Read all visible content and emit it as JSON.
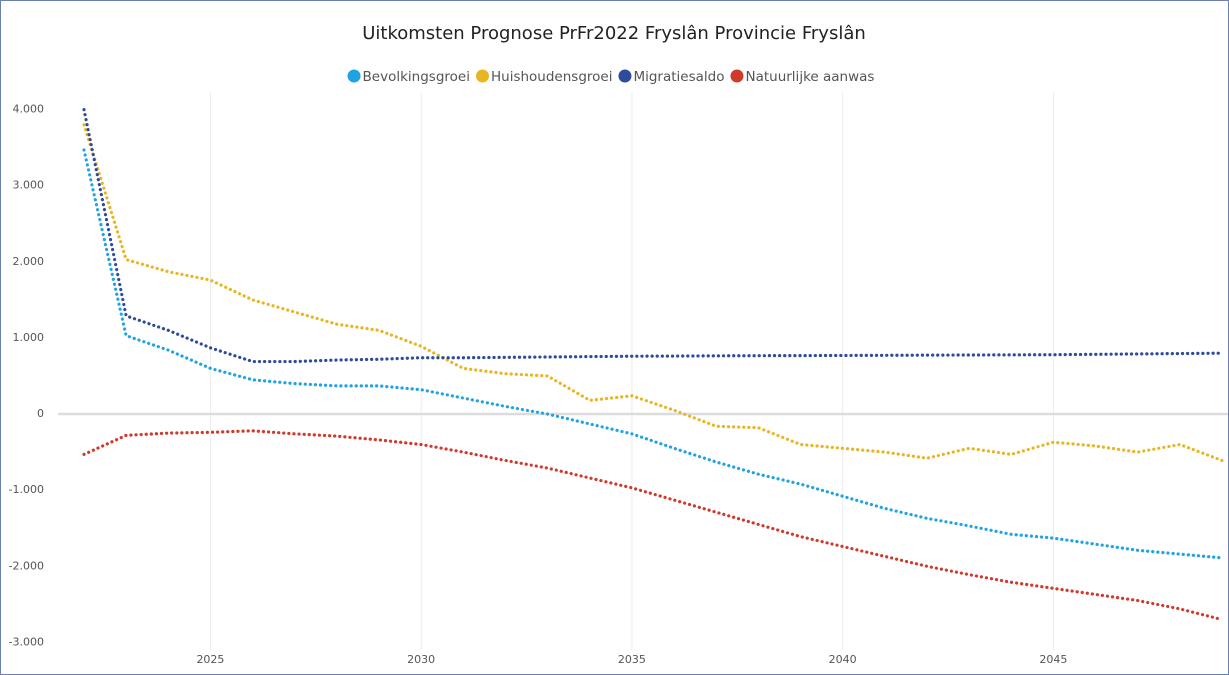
{
  "chart_data": {
    "type": "line",
    "title": "Uitkomsten Prognose PrFr2022 Fryslân Provincie Fryslân",
    "x": [
      2022,
      2023,
      2024,
      2025,
      2026,
      2027,
      2028,
      2029,
      2030,
      2031,
      2032,
      2033,
      2034,
      2035,
      2036,
      2037,
      2038,
      2039,
      2040,
      2041,
      2042,
      2043,
      2044,
      2045,
      2046,
      2047,
      2048,
      2049
    ],
    "series": [
      {
        "name": "Bevolkingsgroei",
        "color": "#1fa3e3",
        "values": [
          3470,
          1030,
          840,
          600,
          450,
          400,
          370,
          370,
          320,
          210,
          100,
          0,
          -130,
          -260,
          -450,
          -630,
          -790,
          -920,
          -1080,
          -1240,
          -1370,
          -1470,
          -1580,
          -1630,
          -1710,
          -1790,
          -1840,
          -1890
        ]
      },
      {
        "name": "Huishoudensgroei",
        "color": "#e8b523",
        "values": [
          3800,
          2030,
          1870,
          1760,
          1500,
          1340,
          1180,
          1100,
          890,
          600,
          530,
          500,
          180,
          240,
          50,
          -160,
          -180,
          -400,
          -450,
          -500,
          -580,
          -450,
          -530,
          -370,
          -420,
          -500,
          -400,
          -610
        ]
      },
      {
        "name": "Migratiesaldo",
        "color": "#2f4c9c",
        "values": [
          4000,
          1290,
          1100,
          870,
          690,
          690,
          710,
          720,
          740,
          740,
          745,
          750,
          755,
          760,
          762,
          765,
          767,
          768,
          770,
          772,
          774,
          776,
          778,
          780,
          785,
          790,
          795,
          800
        ]
      },
      {
        "name": "Natuurlijke aanwas",
        "color": "#cf3a2b",
        "values": [
          -530,
          -280,
          -250,
          -240,
          -220,
          -260,
          -290,
          -340,
          -400,
          -500,
          -610,
          -710,
          -840,
          -970,
          -1130,
          -1290,
          -1450,
          -1610,
          -1740,
          -1870,
          -2000,
          -2110,
          -2210,
          -2290,
          -2370,
          -2450,
          -2560,
          -2700
        ]
      }
    ],
    "xlim": [
      2022,
      2049
    ],
    "xticks": [
      2025,
      2030,
      2035,
      2040,
      2045
    ],
    "ylim": [
      -3100,
      4100
    ],
    "yticks": [
      {
        "value": -3000,
        "label": "-3.000"
      },
      {
        "value": -2000,
        "label": "-2.000"
      },
      {
        "value": -1000,
        "label": "-1.000"
      },
      0,
      {
        "value": 1000,
        "label": "1.000"
      },
      {
        "value": 2000,
        "label": "2.000"
      },
      {
        "value": 3000,
        "label": "3.000"
      },
      {
        "value": 4000,
        "label": "4.000"
      }
    ],
    "legend": "top"
  }
}
